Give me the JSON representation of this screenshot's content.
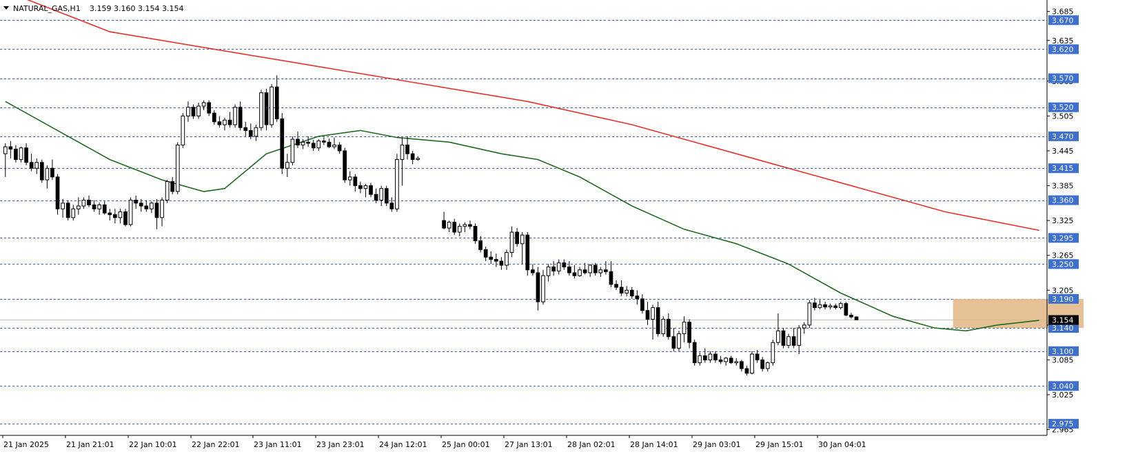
{
  "header": {
    "symbol": "NATURAL_GAS,H1",
    "ohlc": "3.159 3.160 3.154 3.154"
  },
  "colors": {
    "background": "#ffffff",
    "level_line": "#3a5fbf",
    "level_label_bg": "#3d6fce",
    "ma_slow": "#e8312a",
    "ma_fast": "#1e6b1e",
    "candle": "#000000",
    "zone": "#e0b682",
    "price_label_bg": "#000000"
  },
  "chart_data": {
    "type": "candlestick",
    "title": "NATURAL_GAS,H1",
    "ylim": [
      2.955,
      3.7
    ],
    "y_ticks": [
      "3.685",
      "3.635",
      "3.565",
      "3.505",
      "3.445",
      "3.385",
      "3.325",
      "3.265",
      "3.205",
      "3.145",
      "3.085",
      "3.025",
      "2.965"
    ],
    "x_ticks": [
      "21 Jan 2025",
      "21 Jan 21:01",
      "22 Jan 10:01",
      "22 Jan 22:01",
      "23 Jan 11:01",
      "23 Jan 23:01",
      "24 Jan 12:01",
      "25 Jan 00:01",
      "27 Jan 13:01",
      "28 Jan 02:01",
      "28 Jan 14:01",
      "29 Jan 03:01",
      "29 Jan 15:01",
      "30 Jan 04:01"
    ],
    "levels": [
      "3.670",
      "3.620",
      "3.570",
      "3.520",
      "3.470",
      "3.415",
      "3.360",
      "3.295",
      "3.250",
      "3.190",
      "3.140",
      "3.100",
      "3.040",
      "2.975"
    ],
    "current_price": "3.154",
    "zone": {
      "low": 3.14,
      "high": 3.19,
      "x_start": 182,
      "x_end": 207
    },
    "ma_slow": [
      [
        0,
        3.72
      ],
      [
        20,
        3.65
      ],
      [
        40,
        3.62
      ],
      [
        60,
        3.59
      ],
      [
        80,
        3.56
      ],
      [
        100,
        3.53
      ],
      [
        120,
        3.49
      ],
      [
        140,
        3.44
      ],
      [
        160,
        3.39
      ],
      [
        180,
        3.34
      ],
      [
        198,
        3.308
      ]
    ],
    "ma_fast": [
      [
        0,
        3.53
      ],
      [
        10,
        3.48
      ],
      [
        20,
        3.43
      ],
      [
        30,
        3.395
      ],
      [
        38,
        3.375
      ],
      [
        42,
        3.38
      ],
      [
        50,
        3.44
      ],
      [
        60,
        3.47
      ],
      [
        68,
        3.48
      ],
      [
        75,
        3.468
      ],
      [
        85,
        3.46
      ],
      [
        95,
        3.44
      ],
      [
        102,
        3.43
      ],
      [
        110,
        3.4
      ],
      [
        120,
        3.35
      ],
      [
        130,
        3.31
      ],
      [
        140,
        3.285
      ],
      [
        150,
        3.25
      ],
      [
        160,
        3.2
      ],
      [
        170,
        3.16
      ],
      [
        178,
        3.14
      ],
      [
        184,
        3.135
      ],
      [
        190,
        3.145
      ],
      [
        198,
        3.153
      ]
    ],
    "candles": [
      {
        "o": 3.44,
        "h": 3.458,
        "l": 3.4,
        "c": 3.452
      },
      {
        "o": 3.452,
        "h": 3.462,
        "l": 3.432,
        "c": 3.448
      },
      {
        "o": 3.448,
        "h": 3.455,
        "l": 3.425,
        "c": 3.43
      },
      {
        "o": 3.43,
        "h": 3.452,
        "l": 3.425,
        "c": 3.45
      },
      {
        "o": 3.45,
        "h": 3.458,
        "l": 3.42,
        "c": 3.425
      },
      {
        "o": 3.425,
        "h": 3.44,
        "l": 3.41,
        "c": 3.415
      },
      {
        "o": 3.415,
        "h": 3.432,
        "l": 3.405,
        "c": 3.425
      },
      {
        "o": 3.425,
        "h": 3.43,
        "l": 3.39,
        "c": 3.395
      },
      {
        "o": 3.395,
        "h": 3.42,
        "l": 3.38,
        "c": 3.415
      },
      {
        "o": 3.415,
        "h": 3.43,
        "l": 3.395,
        "c": 3.4
      },
      {
        "o": 3.4,
        "h": 3.405,
        "l": 3.335,
        "c": 3.345
      },
      {
        "o": 3.345,
        "h": 3.362,
        "l": 3.33,
        "c": 3.355
      },
      {
        "o": 3.355,
        "h": 3.36,
        "l": 3.325,
        "c": 3.33
      },
      {
        "o": 3.33,
        "h": 3.352,
        "l": 3.325,
        "c": 3.345
      },
      {
        "o": 3.345,
        "h": 3.365,
        "l": 3.335,
        "c": 3.35
      },
      {
        "o": 3.35,
        "h": 3.365,
        "l": 3.345,
        "c": 3.36
      },
      {
        "o": 3.36,
        "h": 3.368,
        "l": 3.348,
        "c": 3.352
      },
      {
        "o": 3.352,
        "h": 3.36,
        "l": 3.34,
        "c": 3.345
      },
      {
        "o": 3.345,
        "h": 3.356,
        "l": 3.335,
        "c": 3.352
      },
      {
        "o": 3.352,
        "h": 3.358,
        "l": 3.335,
        "c": 3.338
      },
      {
        "o": 3.338,
        "h": 3.345,
        "l": 3.325,
        "c": 3.335
      },
      {
        "o": 3.335,
        "h": 3.345,
        "l": 3.32,
        "c": 3.33
      },
      {
        "o": 3.33,
        "h": 3.345,
        "l": 3.32,
        "c": 3.34
      },
      {
        "o": 3.34,
        "h": 3.345,
        "l": 3.315,
        "c": 3.318
      },
      {
        "o": 3.318,
        "h": 3.365,
        "l": 3.315,
        "c": 3.36
      },
      {
        "o": 3.36,
        "h": 3.368,
        "l": 3.345,
        "c": 3.355
      },
      {
        "o": 3.355,
        "h": 3.362,
        "l": 3.34,
        "c": 3.35
      },
      {
        "o": 3.35,
        "h": 3.36,
        "l": 3.34,
        "c": 3.345
      },
      {
        "o": 3.345,
        "h": 3.358,
        "l": 3.338,
        "c": 3.355
      },
      {
        "o": 3.355,
        "h": 3.362,
        "l": 3.31,
        "c": 3.33
      },
      {
        "o": 3.33,
        "h": 3.365,
        "l": 3.315,
        "c": 3.36
      },
      {
        "o": 3.36,
        "h": 3.395,
        "l": 3.355,
        "c": 3.392
      },
      {
        "o": 3.392,
        "h": 3.4,
        "l": 3.37,
        "c": 3.375
      },
      {
        "o": 3.375,
        "h": 3.46,
        "l": 3.37,
        "c": 3.455
      },
      {
        "o": 3.455,
        "h": 3.51,
        "l": 3.45,
        "c": 3.505
      },
      {
        "o": 3.505,
        "h": 3.53,
        "l": 3.495,
        "c": 3.52
      },
      {
        "o": 3.52,
        "h": 3.525,
        "l": 3.5,
        "c": 3.505
      },
      {
        "o": 3.505,
        "h": 3.528,
        "l": 3.5,
        "c": 3.522
      },
      {
        "o": 3.522,
        "h": 3.532,
        "l": 3.515,
        "c": 3.528
      },
      {
        "o": 3.528,
        "h": 3.532,
        "l": 3.505,
        "c": 3.51
      },
      {
        "o": 3.51,
        "h": 3.515,
        "l": 3.49,
        "c": 3.495
      },
      {
        "o": 3.495,
        "h": 3.505,
        "l": 3.485,
        "c": 3.49
      },
      {
        "o": 3.49,
        "h": 3.502,
        "l": 3.48,
        "c": 3.498
      },
      {
        "o": 3.498,
        "h": 3.512,
        "l": 3.485,
        "c": 3.49
      },
      {
        "o": 3.49,
        "h": 3.525,
        "l": 3.485,
        "c": 3.52
      },
      {
        "o": 3.52,
        "h": 3.53,
        "l": 3.48,
        "c": 3.485
      },
      {
        "o": 3.485,
        "h": 3.495,
        "l": 3.47,
        "c": 3.48
      },
      {
        "o": 3.48,
        "h": 3.492,
        "l": 3.465,
        "c": 3.47
      },
      {
        "o": 3.47,
        "h": 3.49,
        "l": 3.462,
        "c": 3.485
      },
      {
        "o": 3.485,
        "h": 3.55,
        "l": 3.48,
        "c": 3.545
      },
      {
        "o": 3.545,
        "h": 3.552,
        "l": 3.48,
        "c": 3.49
      },
      {
        "o": 3.49,
        "h": 3.56,
        "l": 3.485,
        "c": 3.555
      },
      {
        "o": 3.555,
        "h": 3.575,
        "l": 3.495,
        "c": 3.5
      },
      {
        "o": 3.5,
        "h": 3.51,
        "l": 3.405,
        "c": 3.415
      },
      {
        "o": 3.415,
        "h": 3.44,
        "l": 3.4,
        "c": 3.425
      },
      {
        "o": 3.425,
        "h": 3.47,
        "l": 3.42,
        "c": 3.465
      },
      {
        "o": 3.465,
        "h": 3.478,
        "l": 3.45,
        "c": 3.455
      },
      {
        "o": 3.455,
        "h": 3.465,
        "l": 3.448,
        "c": 3.46
      },
      {
        "o": 3.46,
        "h": 3.47,
        "l": 3.452,
        "c": 3.458
      },
      {
        "o": 3.458,
        "h": 3.464,
        "l": 3.445,
        "c": 3.45
      },
      {
        "o": 3.45,
        "h": 3.465,
        "l": 3.445,
        "c": 3.462
      },
      {
        "o": 3.462,
        "h": 3.468,
        "l": 3.455,
        "c": 3.46
      },
      {
        "o": 3.46,
        "h": 3.466,
        "l": 3.45,
        "c": 3.452
      },
      {
        "o": 3.452,
        "h": 3.468,
        "l": 3.448,
        "c": 3.455
      },
      {
        "o": 3.455,
        "h": 3.46,
        "l": 3.44,
        "c": 3.445
      },
      {
        "o": 3.445,
        "h": 3.45,
        "l": 3.39,
        "c": 3.395
      },
      {
        "o": 3.395,
        "h": 3.41,
        "l": 3.385,
        "c": 3.4
      },
      {
        "o": 3.4,
        "h": 3.405,
        "l": 3.375,
        "c": 3.385
      },
      {
        "o": 3.385,
        "h": 3.392,
        "l": 3.372,
        "c": 3.38
      },
      {
        "o": 3.38,
        "h": 3.388,
        "l": 3.365,
        "c": 3.385
      },
      {
        "o": 3.385,
        "h": 3.39,
        "l": 3.365,
        "c": 3.37
      },
      {
        "o": 3.37,
        "h": 3.38,
        "l": 3.355,
        "c": 3.36
      },
      {
        "o": 3.36,
        "h": 3.385,
        "l": 3.35,
        "c": 3.38
      },
      {
        "o": 3.38,
        "h": 3.385,
        "l": 3.35,
        "c": 3.355
      },
      {
        "o": 3.355,
        "h": 3.365,
        "l": 3.34,
        "c": 3.345
      },
      {
        "o": 3.345,
        "h": 3.44,
        "l": 3.34,
        "c": 3.43
      },
      {
        "o": 3.43,
        "h": 3.468,
        "l": 3.385,
        "c": 3.455
      },
      {
        "o": 3.455,
        "h": 3.47,
        "l": 3.43,
        "c": 3.44
      },
      {
        "o": 3.44,
        "h": 3.445,
        "l": 3.422,
        "c": 3.43
      },
      {
        "o": 3.43,
        "h": 3.436,
        "l": 3.428,
        "c": 3.432
      },
      {
        "o": 3.325,
        "h": 3.34,
        "l": 3.31,
        "c": 3.312
      },
      {
        "o": 3.312,
        "h": 3.325,
        "l": 3.305,
        "c": 3.322
      },
      {
        "o": 3.322,
        "h": 3.328,
        "l": 3.3,
        "c": 3.305
      },
      {
        "o": 3.305,
        "h": 3.32,
        "l": 3.298,
        "c": 3.315
      },
      {
        "o": 3.315,
        "h": 3.322,
        "l": 3.305,
        "c": 3.318
      },
      {
        "o": 3.318,
        "h": 3.325,
        "l": 3.31,
        "c": 3.315
      },
      {
        "o": 3.315,
        "h": 3.32,
        "l": 3.285,
        "c": 3.29
      },
      {
        "o": 3.29,
        "h": 3.298,
        "l": 3.27,
        "c": 3.275
      },
      {
        "o": 3.275,
        "h": 3.28,
        "l": 3.255,
        "c": 3.262
      },
      {
        "o": 3.262,
        "h": 3.272,
        "l": 3.25,
        "c": 3.258
      },
      {
        "o": 3.258,
        "h": 3.268,
        "l": 3.245,
        "c": 3.255
      },
      {
        "o": 3.255,
        "h": 3.262,
        "l": 3.24,
        "c": 3.248
      },
      {
        "o": 3.248,
        "h": 3.275,
        "l": 3.24,
        "c": 3.27
      },
      {
        "o": 3.27,
        "h": 3.315,
        "l": 3.262,
        "c": 3.305
      },
      {
        "o": 3.305,
        "h": 3.312,
        "l": 3.28,
        "c": 3.285
      },
      {
        "o": 3.285,
        "h": 3.305,
        "l": 3.25,
        "c": 3.3
      },
      {
        "o": 3.3,
        "h": 3.305,
        "l": 3.23,
        "c": 3.24
      },
      {
        "o": 3.24,
        "h": 3.25,
        "l": 3.23,
        "c": 3.235
      },
      {
        "o": 3.235,
        "h": 3.245,
        "l": 3.17,
        "c": 3.185
      },
      {
        "o": 3.185,
        "h": 3.24,
        "l": 3.18,
        "c": 3.23
      },
      {
        "o": 3.23,
        "h": 3.25,
        "l": 3.22,
        "c": 3.245
      },
      {
        "o": 3.245,
        "h": 3.255,
        "l": 3.23,
        "c": 3.238
      },
      {
        "o": 3.238,
        "h": 3.258,
        "l": 3.232,
        "c": 3.252
      },
      {
        "o": 3.252,
        "h": 3.258,
        "l": 3.24,
        "c": 3.245
      },
      {
        "o": 3.245,
        "h": 3.255,
        "l": 3.23,
        "c": 3.235
      },
      {
        "o": 3.235,
        "h": 3.248,
        "l": 3.225,
        "c": 3.23
      },
      {
        "o": 3.23,
        "h": 3.245,
        "l": 3.228,
        "c": 3.24
      },
      {
        "o": 3.24,
        "h": 3.252,
        "l": 3.232,
        "c": 3.235
      },
      {
        "o": 3.235,
        "h": 3.25,
        "l": 3.228,
        "c": 3.248
      },
      {
        "o": 3.248,
        "h": 3.252,
        "l": 3.23,
        "c": 3.235
      },
      {
        "o": 3.235,
        "h": 3.245,
        "l": 3.228,
        "c": 3.24
      },
      {
        "o": 3.24,
        "h": 3.255,
        "l": 3.232,
        "c": 3.237
      },
      {
        "o": 3.237,
        "h": 3.255,
        "l": 3.21,
        "c": 3.215
      },
      {
        "o": 3.215,
        "h": 3.222,
        "l": 3.205,
        "c": 3.21
      },
      {
        "o": 3.21,
        "h": 3.222,
        "l": 3.195,
        "c": 3.2
      },
      {
        "o": 3.2,
        "h": 3.212,
        "l": 3.195,
        "c": 3.205
      },
      {
        "o": 3.205,
        "h": 3.21,
        "l": 3.19,
        "c": 3.195
      },
      {
        "o": 3.195,
        "h": 3.205,
        "l": 3.18,
        "c": 3.19
      },
      {
        "o": 3.19,
        "h": 3.198,
        "l": 3.165,
        "c": 3.17
      },
      {
        "o": 3.17,
        "h": 3.185,
        "l": 3.145,
        "c": 3.155
      },
      {
        "o": 3.155,
        "h": 3.18,
        "l": 3.12,
        "c": 3.175
      },
      {
        "o": 3.175,
        "h": 3.185,
        "l": 3.125,
        "c": 3.13
      },
      {
        "o": 3.13,
        "h": 3.16,
        "l": 3.125,
        "c": 3.155
      },
      {
        "o": 3.155,
        "h": 3.165,
        "l": 3.12,
        "c": 3.125
      },
      {
        "o": 3.125,
        "h": 3.14,
        "l": 3.1,
        "c": 3.105
      },
      {
        "o": 3.105,
        "h": 3.135,
        "l": 3.1,
        "c": 3.13
      },
      {
        "o": 3.13,
        "h": 3.16,
        "l": 3.115,
        "c": 3.15
      },
      {
        "o": 3.15,
        "h": 3.155,
        "l": 3.105,
        "c": 3.115
      },
      {
        "o": 3.115,
        "h": 3.12,
        "l": 3.075,
        "c": 3.08
      },
      {
        "o": 3.08,
        "h": 3.098,
        "l": 3.075,
        "c": 3.092
      },
      {
        "o": 3.092,
        "h": 3.105,
        "l": 3.08,
        "c": 3.085
      },
      {
        "o": 3.085,
        "h": 3.1,
        "l": 3.08,
        "c": 3.095
      },
      {
        "o": 3.095,
        "h": 3.1,
        "l": 3.08,
        "c": 3.085
      },
      {
        "o": 3.085,
        "h": 3.092,
        "l": 3.078,
        "c": 3.082
      },
      {
        "o": 3.082,
        "h": 3.09,
        "l": 3.075,
        "c": 3.088
      },
      {
        "o": 3.088,
        "h": 3.092,
        "l": 3.078,
        "c": 3.08
      },
      {
        "o": 3.08,
        "h": 3.088,
        "l": 3.075,
        "c": 3.082
      },
      {
        "o": 3.082,
        "h": 3.085,
        "l": 3.065,
        "c": 3.07
      },
      {
        "o": 3.07,
        "h": 3.075,
        "l": 3.058,
        "c": 3.062
      },
      {
        "o": 3.062,
        "h": 3.1,
        "l": 3.06,
        "c": 3.095
      },
      {
        "o": 3.095,
        "h": 3.102,
        "l": 3.08,
        "c": 3.085
      },
      {
        "o": 3.085,
        "h": 3.09,
        "l": 3.065,
        "c": 3.07
      },
      {
        "o": 3.07,
        "h": 3.082,
        "l": 3.065,
        "c": 3.08
      },
      {
        "o": 3.08,
        "h": 3.12,
        "l": 3.075,
        "c": 3.115
      },
      {
        "o": 3.115,
        "h": 3.165,
        "l": 3.11,
        "c": 3.135
      },
      {
        "o": 3.135,
        "h": 3.14,
        "l": 3.105,
        "c": 3.11
      },
      {
        "o": 3.11,
        "h": 3.13,
        "l": 3.105,
        "c": 3.125
      },
      {
        "o": 3.125,
        "h": 3.14,
        "l": 3.105,
        "c": 3.11
      },
      {
        "o": 3.11,
        "h": 3.145,
        "l": 3.095,
        "c": 3.14
      },
      {
        "o": 3.14,
        "h": 3.15,
        "l": 3.13,
        "c": 3.145
      },
      {
        "o": 3.145,
        "h": 3.188,
        "l": 3.14,
        "c": 3.183
      },
      {
        "o": 3.183,
        "h": 3.192,
        "l": 3.17,
        "c": 3.175
      },
      {
        "o": 3.175,
        "h": 3.188,
        "l": 3.172,
        "c": 3.18
      },
      {
        "o": 3.18,
        "h": 3.185,
        "l": 3.172,
        "c": 3.176
      },
      {
        "o": 3.176,
        "h": 3.182,
        "l": 3.172,
        "c": 3.178
      },
      {
        "o": 3.178,
        "h": 3.182,
        "l": 3.172,
        "c": 3.175
      },
      {
        "o": 3.175,
        "h": 3.185,
        "l": 3.172,
        "c": 3.182
      },
      {
        "o": 3.182,
        "h": 3.185,
        "l": 3.16,
        "c": 3.162
      },
      {
        "o": 3.162,
        "h": 3.166,
        "l": 3.156,
        "c": 3.159
      },
      {
        "o": 3.159,
        "h": 3.16,
        "l": 3.154,
        "c": 3.154
      }
    ]
  }
}
